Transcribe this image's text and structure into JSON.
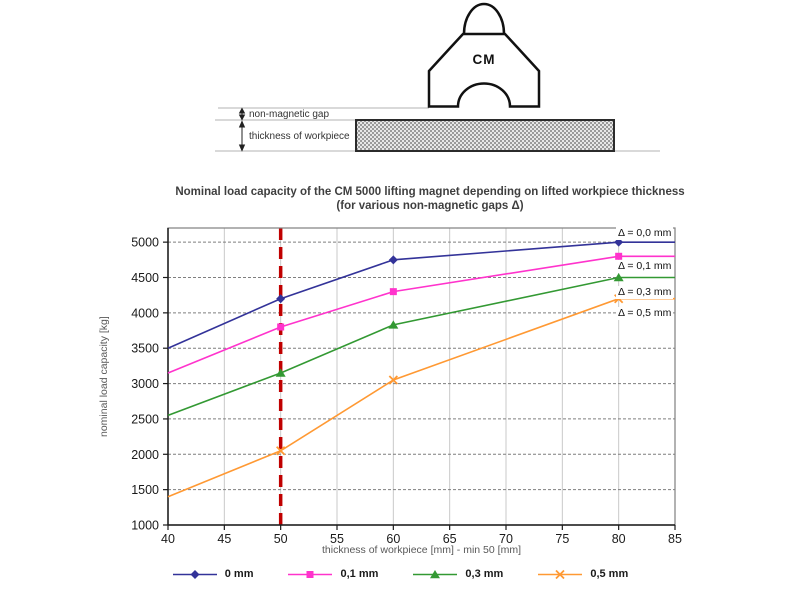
{
  "diagram": {
    "magnet_label": "CM",
    "gap_label": "non-magnetic gap",
    "workpiece_label": "thickness of workpiece"
  },
  "chart_data": {
    "type": "line",
    "title": "Nominal load capacity of the CM 5000 lifting magnet depending on lifted workpiece thickness",
    "subtitle": "(for various non-magnetic gaps Δ)",
    "xlabel": "thickness of workpiece [mm] - min 50 [mm]",
    "ylabel": "nominal load capacity [kg]",
    "xlim": [
      40,
      85
    ],
    "ylim": [
      1000,
      5200
    ],
    "x_ticks": [
      40,
      45,
      50,
      55,
      60,
      65,
      70,
      75,
      80,
      85
    ],
    "y_ticks": [
      1000,
      1500,
      2000,
      2500,
      3000,
      3500,
      4000,
      4500,
      5000
    ],
    "grid": true,
    "legend_position": "bottom",
    "x": [
      40,
      50,
      60,
      80,
      85
    ],
    "marker_x": [
      50,
      60,
      80
    ],
    "series": [
      {
        "name": "0 mm",
        "annotation": "Δ = 0,0 mm",
        "color": "#333399",
        "marker": "diamond",
        "values": [
          3500,
          4200,
          4750,
          5000,
          5000
        ]
      },
      {
        "name": "0,1 mm",
        "annotation": "Δ = 0,1 mm",
        "color": "#FF33CC",
        "marker": "square",
        "values": [
          3150,
          3800,
          4300,
          4800,
          4800
        ]
      },
      {
        "name": "0,3 mm",
        "annotation": "Δ = 0,3 mm",
        "color": "#339933",
        "marker": "triangle",
        "values": [
          2550,
          3150,
          3830,
          4500,
          4500
        ]
      },
      {
        "name": "0,5 mm",
        "annotation": "Δ = 0,5 mm",
        "color": "#FF9933",
        "marker": "x",
        "values": [
          1400,
          2050,
          3050,
          4200,
          4200
        ]
      }
    ],
    "reference_line": {
      "x": 50,
      "color": "#C00000",
      "style": "dashed"
    }
  }
}
